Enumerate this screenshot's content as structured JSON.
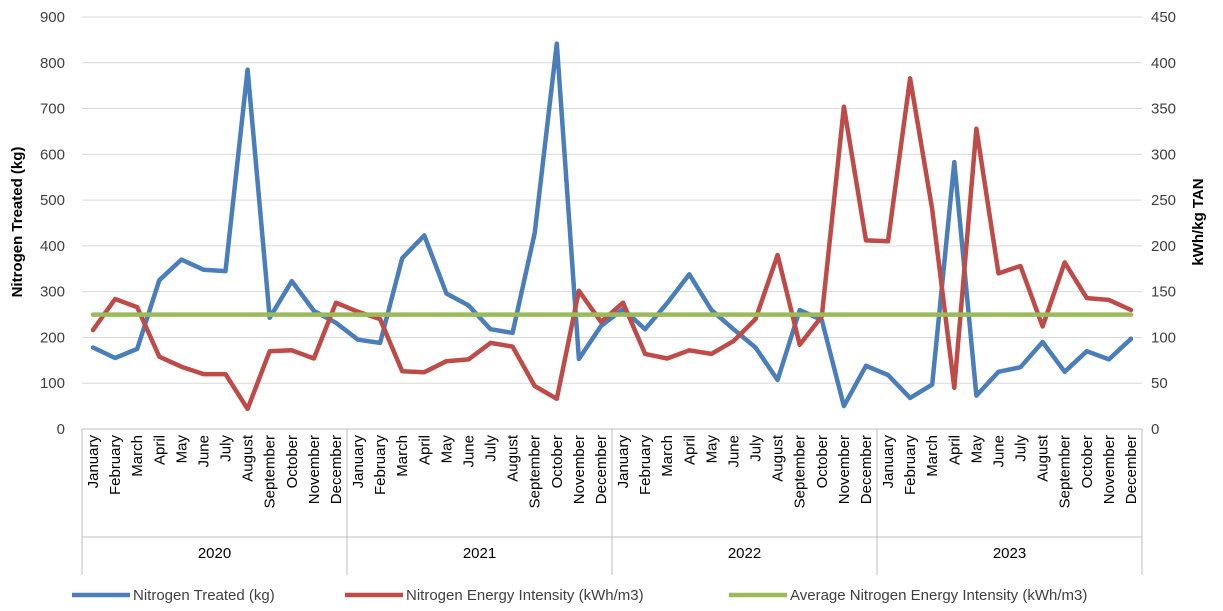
{
  "chart_data": {
    "type": "line",
    "years": [
      "2020",
      "2021",
      "2022",
      "2023"
    ],
    "months": [
      "January",
      "February",
      "March",
      "April",
      "May",
      "June",
      "July",
      "August",
      "September",
      "October",
      "November",
      "December"
    ],
    "ylabel_left": "Nitrogen Treated (kg)",
    "ylabel_right": "kWh/kg TAN",
    "ylim_left": [
      0,
      900
    ],
    "ylim_right": [
      0,
      450
    ],
    "yticks_left": [
      0,
      100,
      200,
      300,
      400,
      500,
      600,
      700,
      800,
      900
    ],
    "yticks_right": [
      0,
      50,
      100,
      150,
      200,
      250,
      300,
      350,
      400,
      450
    ],
    "grid": true,
    "legend_position": "bottom",
    "series": [
      {
        "name": "Nitrogen Treated (kg)",
        "axis": "left",
        "color": "#4a7ebb",
        "values": [
          178,
          155,
          175,
          325,
          370,
          348,
          345,
          785,
          243,
          323,
          258,
          232,
          195,
          188,
          373,
          423,
          296,
          270,
          218,
          210,
          428,
          842,
          153,
          225,
          262,
          218,
          275,
          338,
          260,
          218,
          178,
          107,
          260,
          238,
          50,
          138,
          118,
          68,
          97,
          583,
          73,
          125,
          135,
          190,
          125,
          170,
          152,
          197
        ]
      },
      {
        "name": "Nitrogen Energy Intensity (kWh/m3)",
        "axis": "right",
        "color": "#be4b48",
        "values": [
          108,
          142,
          133,
          79,
          68,
          60,
          60,
          22,
          85,
          86,
          77,
          138,
          128,
          120,
          63,
          62,
          74,
          76,
          94,
          90,
          47,
          33,
          151,
          117,
          138,
          82,
          77,
          86,
          82,
          96,
          120,
          190,
          92,
          123,
          352,
          206,
          205,
          383,
          240,
          45,
          328,
          170,
          178,
          112,
          182,
          143,
          141,
          130
        ]
      },
      {
        "name": "Average Nitrogen Energy Intensity (kWh/m3)",
        "axis": "right",
        "color": "#9bbb59",
        "values": [
          125,
          125,
          125,
          125,
          125,
          125,
          125,
          125,
          125,
          125,
          125,
          125,
          125,
          125,
          125,
          125,
          125,
          125,
          125,
          125,
          125,
          125,
          125,
          125,
          125,
          125,
          125,
          125,
          125,
          125,
          125,
          125,
          125,
          125,
          125,
          125,
          125,
          125,
          125,
          125,
          125,
          125,
          125,
          125,
          125,
          125,
          125,
          125
        ]
      }
    ]
  },
  "colors": {
    "gridline": "#d9d9d9",
    "axis": "#bfbfbf",
    "text": "#404040"
  }
}
